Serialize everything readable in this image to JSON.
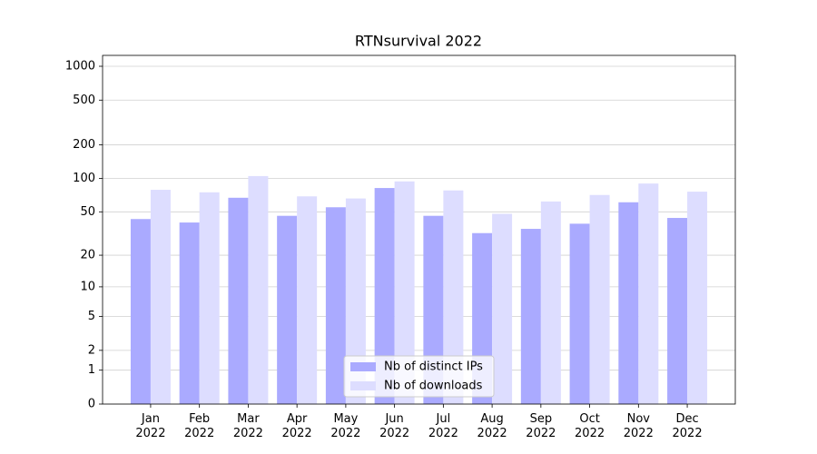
{
  "chart_data": {
    "type": "bar",
    "title": "RTNsurvival 2022",
    "categories": [
      "Jan\n2022",
      "Feb\n2022",
      "Mar\n2022",
      "Apr\n2022",
      "May\n2022",
      "Jun\n2022",
      "Jul\n2022",
      "Aug\n2022",
      "Sep\n2022",
      "Oct\n2022",
      "Nov\n2022",
      "Dec\n2022"
    ],
    "series": [
      {
        "name": "Nb of distinct IPs",
        "color": "#aaaaff",
        "values": [
          43,
          40,
          67,
          46,
          55,
          82,
          46,
          32,
          35,
          39,
          61,
          44
        ]
      },
      {
        "name": "Nb of downloads",
        "color": "#ddddff",
        "values": [
          79,
          75,
          105,
          69,
          66,
          94,
          78,
          48,
          62,
          71,
          90,
          76
        ]
      }
    ],
    "yscale": "log1p",
    "ylim": [
      0,
      1250
    ],
    "yticks": [
      0,
      1,
      2,
      5,
      10,
      20,
      50,
      100,
      200,
      500,
      1000
    ],
    "grid": true,
    "legend": "lower center"
  }
}
